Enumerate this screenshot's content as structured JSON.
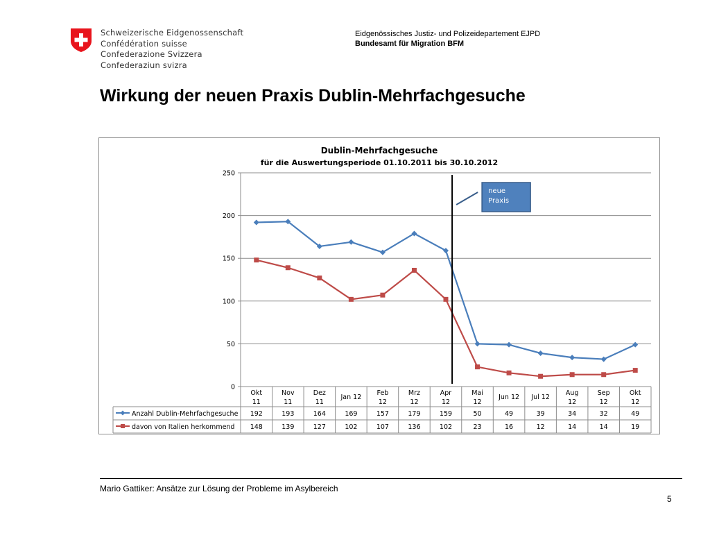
{
  "header": {
    "org_names": [
      "Schweizerische Eidgenossenschaft",
      "Confédération suisse",
      "Confederazione Svizzera",
      "Confederaziun svizra"
    ],
    "department": "Eidgenössisches Justiz- und Polizeidepartement EJPD",
    "office": "Bundesamt für Migration BFM"
  },
  "slide": {
    "title": "Wirkung der neuen Praxis Dublin-Mehrfachgesuche"
  },
  "colors": {
    "series1": "#4a7ebb",
    "series2": "#be4b48",
    "callout_fill": "#4f81bd",
    "callout_border": "#385d8a",
    "marker_line": "#000000",
    "swiss_red": "#e8141c"
  },
  "chart_data": {
    "type": "line",
    "title": "Dublin-Mehrfachgesuche",
    "subtitle": "für die Auswertungsperiode 01.10.2011 bis 30.10.2012",
    "categories": [
      "Okt 11",
      "Nov 11",
      "Dez 11",
      "Jan 12",
      "Feb 12",
      "Mrz 12",
      "Apr 12",
      "Mai 12",
      "Jun 12",
      "Jul 12",
      "Aug 12",
      "Sep 12",
      "Okt 12"
    ],
    "series": [
      {
        "name": "Anzahl Dublin-Mehrfachgesuche",
        "values": [
          192,
          193,
          164,
          169,
          157,
          179,
          159,
          50,
          49,
          39,
          34,
          32,
          49
        ],
        "marker": "diamond"
      },
      {
        "name": "davon von Italien herkommend",
        "values": [
          148,
          139,
          127,
          102,
          107,
          136,
          102,
          23,
          16,
          12,
          14,
          14,
          19
        ],
        "marker": "square"
      }
    ],
    "ylim": [
      0,
      250
    ],
    "yticks": [
      0,
      50,
      100,
      150,
      200,
      250
    ],
    "grid": true,
    "legend": "data-table",
    "annotation": {
      "text": [
        "neue",
        "Praxis"
      ],
      "after_category": "Apr 12"
    }
  },
  "footer": {
    "text": "Mario Gattiker: Ansätze zur Lösung der Probleme im Asylbereich",
    "page_number": "5"
  }
}
